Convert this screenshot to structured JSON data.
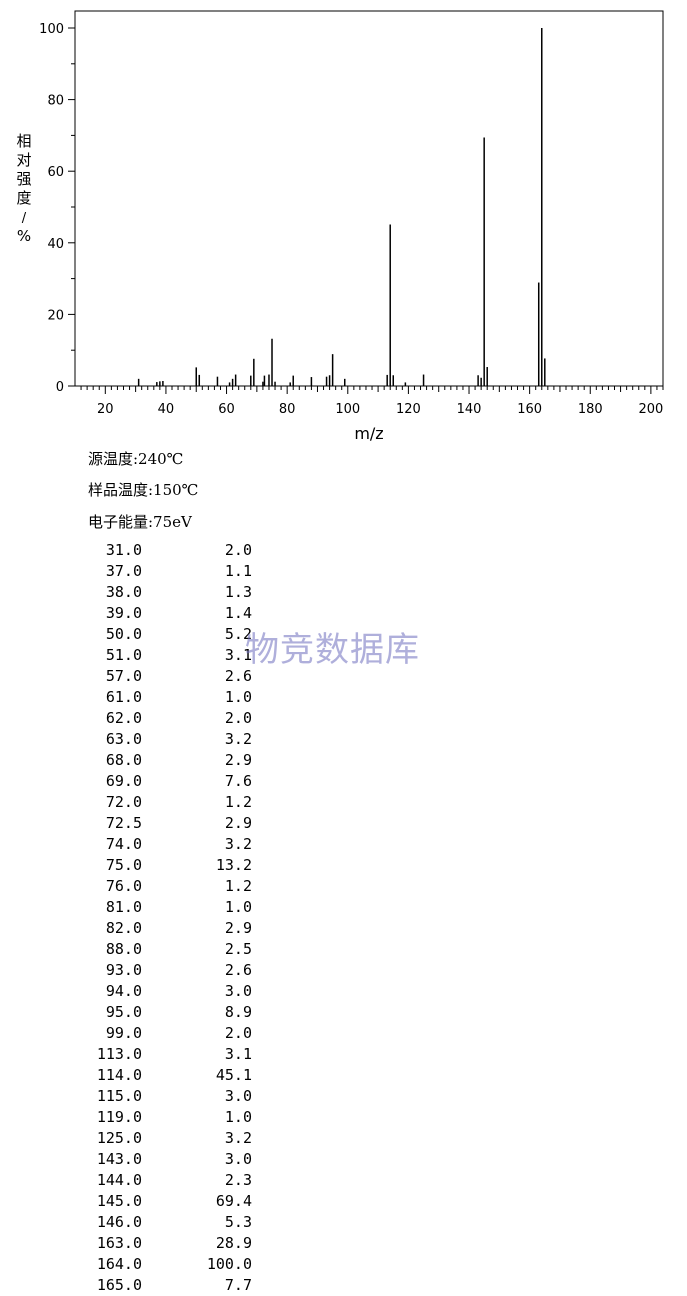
{
  "chart_data": {
    "type": "bar",
    "xlabel": "m/z",
    "ylabel": "相对强度/%",
    "xlim": [
      10,
      204
    ],
    "ylim": [
      0,
      100
    ],
    "xticks": [
      20,
      40,
      60,
      80,
      100,
      120,
      140,
      160,
      180,
      200
    ],
    "yticks": [
      0,
      20,
      40,
      60,
      80,
      100
    ],
    "grid": false,
    "peaks": [
      {
        "mz": "31.0",
        "intensity": "2.0"
      },
      {
        "mz": "37.0",
        "intensity": "1.1"
      },
      {
        "mz": "38.0",
        "intensity": "1.3"
      },
      {
        "mz": "39.0",
        "intensity": "1.4"
      },
      {
        "mz": "50.0",
        "intensity": "5.2"
      },
      {
        "mz": "51.0",
        "intensity": "3.1"
      },
      {
        "mz": "57.0",
        "intensity": "2.6"
      },
      {
        "mz": "61.0",
        "intensity": "1.0"
      },
      {
        "mz": "62.0",
        "intensity": "2.0"
      },
      {
        "mz": "63.0",
        "intensity": "3.2"
      },
      {
        "mz": "68.0",
        "intensity": "2.9"
      },
      {
        "mz": "69.0",
        "intensity": "7.6"
      },
      {
        "mz": "72.0",
        "intensity": "1.2"
      },
      {
        "mz": "72.5",
        "intensity": "2.9"
      },
      {
        "mz": "74.0",
        "intensity": "3.2"
      },
      {
        "mz": "75.0",
        "intensity": "13.2"
      },
      {
        "mz": "76.0",
        "intensity": "1.2"
      },
      {
        "mz": "81.0",
        "intensity": "1.0"
      },
      {
        "mz": "82.0",
        "intensity": "2.9"
      },
      {
        "mz": "88.0",
        "intensity": "2.5"
      },
      {
        "mz": "93.0",
        "intensity": "2.6"
      },
      {
        "mz": "94.0",
        "intensity": "3.0"
      },
      {
        "mz": "95.0",
        "intensity": "8.9"
      },
      {
        "mz": "99.0",
        "intensity": "2.0"
      },
      {
        "mz": "113.0",
        "intensity": "3.1"
      },
      {
        "mz": "114.0",
        "intensity": "45.1"
      },
      {
        "mz": "115.0",
        "intensity": "3.0"
      },
      {
        "mz": "119.0",
        "intensity": "1.0"
      },
      {
        "mz": "125.0",
        "intensity": "3.2"
      },
      {
        "mz": "143.0",
        "intensity": "3.0"
      },
      {
        "mz": "144.0",
        "intensity": "2.3"
      },
      {
        "mz": "145.0",
        "intensity": "69.4"
      },
      {
        "mz": "146.0",
        "intensity": "5.3"
      },
      {
        "mz": "163.0",
        "intensity": "28.9"
      },
      {
        "mz": "164.0",
        "intensity": "100.0"
      },
      {
        "mz": "165.0",
        "intensity": "7.7"
      }
    ]
  },
  "conditions": {
    "source_temp": "源温度:240℃",
    "sample_temp": "样品温度:150℃",
    "electron_energy": "电子能量:75eV"
  },
  "watermark": "物竞数据库",
  "colors": {
    "line": "#000000",
    "watermark": "#6e6ebe"
  }
}
